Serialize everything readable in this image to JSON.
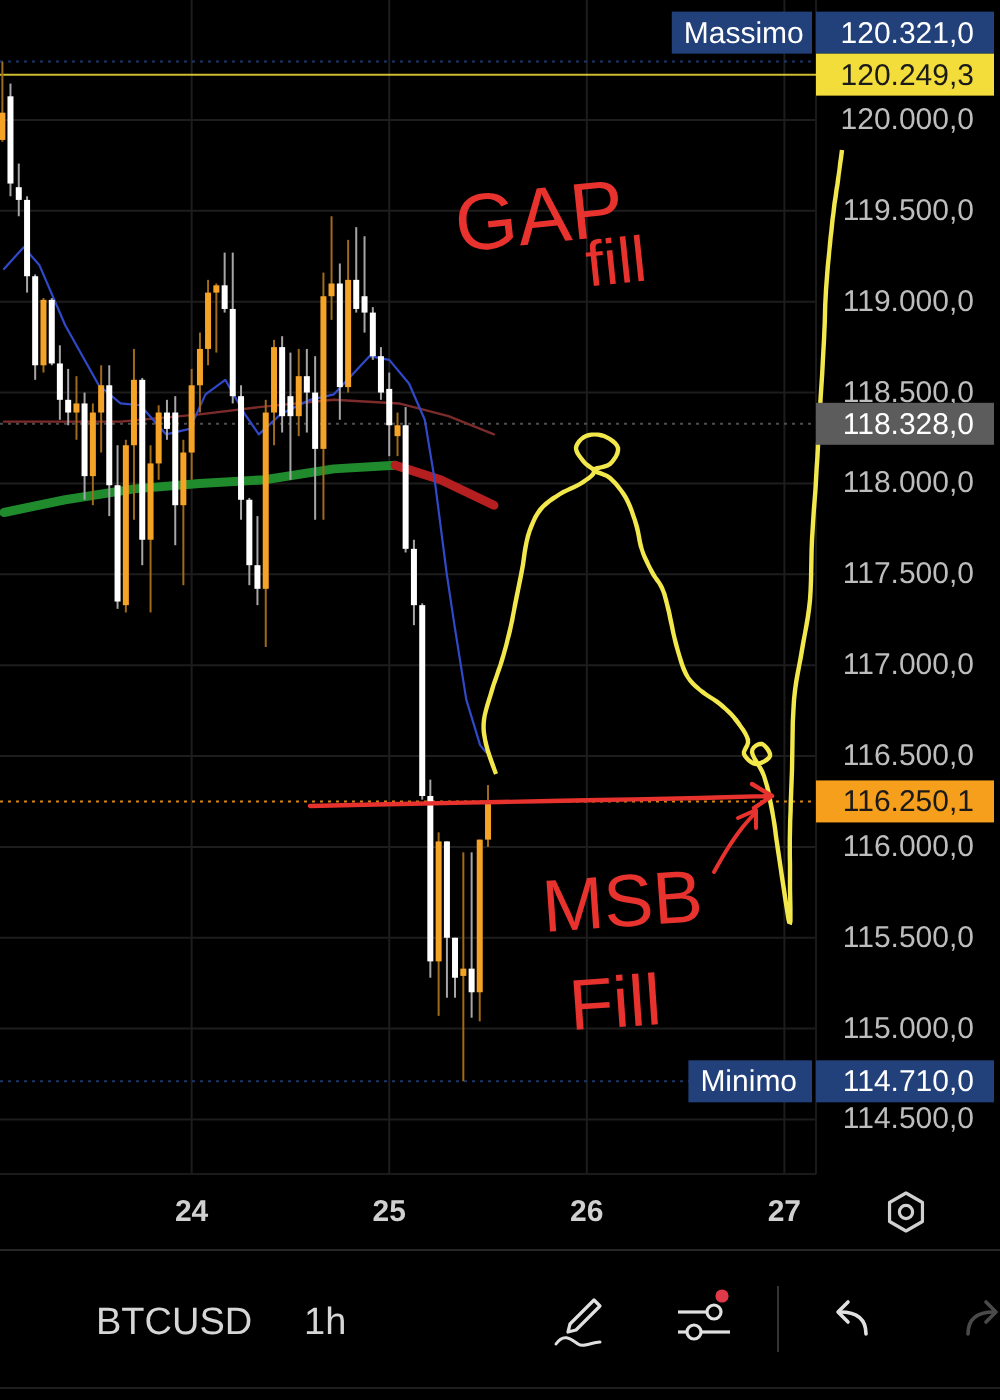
{
  "chart_data": {
    "type": "candlestick",
    "xlim": [
      23.03,
      27.16
    ],
    "xticks": [
      24,
      25,
      26,
      27
    ],
    "ylim": [
      114200,
      120660
    ],
    "yticks": [
      {
        "value": 114500,
        "label": "114.500,0"
      },
      {
        "value": 115000,
        "label": "115.000,0"
      },
      {
        "value": 115500,
        "label": "115.500,0"
      },
      {
        "value": 116000,
        "label": "116.000,0"
      },
      {
        "value": 116500,
        "label": "116.500,0"
      },
      {
        "value": 117000,
        "label": "117.000,0"
      },
      {
        "value": 117500,
        "label": "117.500,0"
      },
      {
        "value": 118000,
        "label": "118.000,0"
      },
      {
        "value": 118500,
        "label": "118.500,0"
      },
      {
        "value": 119000,
        "label": "119.000,0"
      },
      {
        "value": 119500,
        "label": "119.500,0"
      },
      {
        "value": 120000,
        "label": "120.000,0"
      }
    ],
    "grid": true,
    "series": [
      {
        "type": "line",
        "color": "#7c2b2b",
        "x": [
          23.05,
          23.64,
          24.04,
          24.34,
          24.72,
          25.05,
          25.3,
          25.53
        ],
        "values": [
          118340,
          118340,
          118380,
          118420,
          118460,
          118440,
          118370,
          118270
        ]
      },
      {
        "type": "line",
        "color": "#1f8b2c",
        "x": [
          23.05,
          23.36,
          23.71,
          24.04,
          24.37,
          24.72,
          25.03
        ],
        "values": [
          117840,
          117910,
          117970,
          118000,
          118020,
          118080,
          118100
        ]
      },
      {
        "type": "line",
        "color": "#b51f1f",
        "x": [
          25.03,
          25.26,
          25.53
        ],
        "values": [
          118100,
          118020,
          117880
        ]
      },
      {
        "type": "line",
        "color": "#3049c8",
        "x": [
          23.05,
          23.15,
          23.23,
          23.36,
          23.53,
          23.64,
          23.74,
          23.87,
          23.99,
          24.07,
          24.17,
          24.27,
          24.34,
          24.45,
          24.6,
          24.72,
          24.9,
          25.0,
          25.1,
          25.18,
          25.23,
          25.29,
          25.33,
          25.39,
          25.46,
          25.49
        ],
        "values": [
          119180,
          119300,
          119200,
          118870,
          118540,
          118440,
          118430,
          118270,
          118300,
          118490,
          118570,
          118380,
          118270,
          118380,
          118460,
          118490,
          118700,
          118680,
          118550,
          118350,
          118020,
          117510,
          117220,
          116810,
          116560,
          116520
        ]
      },
      {
        "color": "#f5a327",
        "x": [
          23.042,
          23.25,
          23.417,
          23.5,
          23.542,
          23.667,
          23.708,
          23.792,
          23.833,
          23.958,
          24,
          24.042,
          24.083,
          24.125,
          24.375,
          24.417,
          24.542,
          24.667,
          24.708,
          24.792,
          25.042,
          25.25,
          25.375,
          25.458,
          25.5
        ],
        "ohlc": [
          [
            119890,
            120321,
            119880,
            120040
          ],
          [
            118650,
            119020,
            118610,
            119010
          ],
          [
            118390,
            118590,
            118240,
            118440
          ],
          [
            118040,
            118440,
            117880,
            118390
          ],
          [
            118390,
            118650,
            118170,
            118540
          ],
          [
            117330,
            118240,
            117290,
            118210
          ],
          [
            118210,
            118740,
            117800,
            118570
          ],
          [
            117690,
            118210,
            117290,
            118110
          ],
          [
            118110,
            118430,
            118020,
            118390
          ],
          [
            117880,
            118240,
            117440,
            118170
          ],
          [
            118170,
            118630,
            118020,
            118540
          ],
          [
            118540,
            118830,
            118390,
            118740
          ],
          [
            118740,
            119120,
            118650,
            119050
          ],
          [
            119050,
            119100,
            118720,
            119090
          ],
          [
            117420,
            118460,
            117100,
            118390
          ],
          [
            118390,
            118790,
            118210,
            118750
          ],
          [
            118370,
            118740,
            118260,
            118590
          ],
          [
            118190,
            119160,
            117800,
            119030
          ],
          [
            119030,
            119470,
            118900,
            119100
          ],
          [
            118530,
            119340,
            118500,
            119120
          ],
          [
            118260,
            118390,
            118150,
            118320
          ],
          [
            115370,
            116080,
            115070,
            116030
          ],
          [
            115290,
            115970,
            114710,
            115330
          ],
          [
            115200,
            116040,
            115040,
            116040
          ],
          [
            116040,
            116340,
            116000,
            116250.1
          ]
        ]
      },
      {
        "color": "#ffffff",
        "x": [
          23.083,
          23.125,
          23.167,
          23.208,
          23.292,
          23.333,
          23.375,
          23.458,
          23.583,
          23.625,
          23.75,
          23.875,
          23.917,
          24.167,
          24.208,
          24.25,
          24.292,
          24.333,
          24.458,
          24.5,
          24.583,
          24.625,
          24.75,
          24.833,
          24.875,
          24.917,
          24.958,
          25,
          25.083,
          25.125,
          25.167,
          25.208,
          25.292,
          25.333,
          25.417
        ],
        "ohlc": [
          [
            120130,
            120200,
            119580,
            119650
          ],
          [
            119630,
            119760,
            119470,
            119560
          ],
          [
            119560,
            119580,
            119050,
            119140
          ],
          [
            119140,
            119150,
            118570,
            118650
          ],
          [
            119010,
            119020,
            118650,
            118660
          ],
          [
            118660,
            118760,
            118350,
            118460
          ],
          [
            118460,
            118630,
            118320,
            118390
          ],
          [
            118440,
            118500,
            117910,
            118040
          ],
          [
            118540,
            118650,
            117820,
            117990
          ],
          [
            117990,
            118210,
            117310,
            117350
          ],
          [
            118570,
            118580,
            117550,
            117690
          ],
          [
            118390,
            118460,
            118240,
            118300
          ],
          [
            118390,
            118480,
            117660,
            117880
          ],
          [
            119090,
            119270,
            118940,
            118960
          ],
          [
            118960,
            119270,
            118440,
            118480
          ],
          [
            118480,
            118540,
            117800,
            117910
          ],
          [
            117910,
            117920,
            117440,
            117550
          ],
          [
            117550,
            117820,
            117330,
            117420
          ],
          [
            118750,
            118810,
            118280,
            118370
          ],
          [
            118480,
            118720,
            118020,
            118370
          ],
          [
            118590,
            118740,
            118280,
            118500
          ],
          [
            118500,
            118700,
            117800,
            118190
          ],
          [
            119100,
            119210,
            118350,
            118530
          ],
          [
            119120,
            119410,
            118940,
            118960
          ],
          [
            119030,
            119360,
            118830,
            118940
          ],
          [
            118940,
            118970,
            118680,
            118700
          ],
          [
            118700,
            118750,
            118460,
            118500
          ],
          [
            118520,
            118610,
            118150,
            118320
          ],
          [
            118320,
            118420,
            117620,
            117640
          ],
          [
            117640,
            117690,
            117220,
            117330
          ],
          [
            117330,
            117340,
            116260,
            116280
          ],
          [
            116280,
            116370,
            115280,
            115370
          ],
          [
            116030,
            116030,
            115170,
            115500
          ],
          [
            115500,
            115500,
            115170,
            115280
          ],
          [
            115330,
            115970,
            115060,
            115200
          ]
        ]
      }
    ],
    "ref_lines": [
      {
        "axis": "y",
        "value": 120321.0,
        "label": "Massimo 120.321,0",
        "color": "#22407a",
        "line_style": "dotted"
      },
      {
        "axis": "y",
        "value": 120249.3,
        "label": "120.249,3",
        "color": "#f2dd3a",
        "line_style": "solid"
      },
      {
        "axis": "y",
        "value": 118328.0,
        "label": "118.328,0",
        "color": "#5c5c5c",
        "line_style": "dotted"
      },
      {
        "axis": "y",
        "value": 116250.1,
        "label": "116.250,1",
        "color": "#f59f1c",
        "line_style": "dotted"
      },
      {
        "axis": "y",
        "value": 114710.0,
        "label": "Minimo 114.710,0",
        "color": "#22407a",
        "line_style": "dotted"
      }
    ],
    "annotations": [
      "GAP fill",
      "MSB Fill",
      "BTCUSD",
      "1h"
    ]
  }
}
